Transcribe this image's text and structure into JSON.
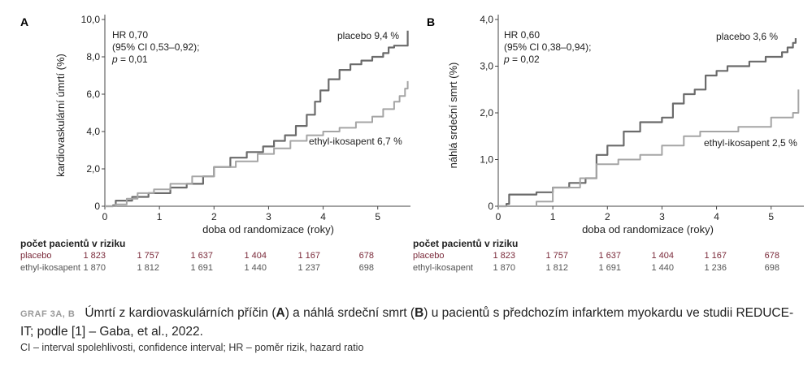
{
  "chart_data": [
    {
      "type": "line",
      "panel_label": "A",
      "xlabel": "doba od randomizace (roky)",
      "ylabel": "kardiovaskulární úmrtí (%)",
      "xlim": [
        0,
        5.6
      ],
      "ylim": [
        0,
        10
      ],
      "x_ticks": [
        0,
        1,
        2,
        3,
        4,
        5
      ],
      "y_ticks": [
        "0",
        "2,0",
        "4,0",
        "6,0",
        "8,0",
        "10,0"
      ],
      "stats": {
        "line1": "HR 0,70",
        "line2": "(95% CI 0,53–0,92);",
        "p_label": "p",
        "p_value": "= 0,01"
      },
      "series": [
        {
          "name": "placebo 9,4 %",
          "color": "#6b6b6b",
          "points": [
            [
              0,
              0
            ],
            [
              0.15,
              0.05
            ],
            [
              0.2,
              0.3
            ],
            [
              0.5,
              0.5
            ],
            [
              0.8,
              0.7
            ],
            [
              1.2,
              1.0
            ],
            [
              1.5,
              1.2
            ],
            [
              1.8,
              1.6
            ],
            [
              2.0,
              2.1
            ],
            [
              2.3,
              2.6
            ],
            [
              2.6,
              2.9
            ],
            [
              2.9,
              3.2
            ],
            [
              3.1,
              3.5
            ],
            [
              3.3,
              3.8
            ],
            [
              3.5,
              4.3
            ],
            [
              3.7,
              4.9
            ],
            [
              3.85,
              5.6
            ],
            [
              3.95,
              6.2
            ],
            [
              4.1,
              6.8
            ],
            [
              4.3,
              7.3
            ],
            [
              4.5,
              7.6
            ],
            [
              4.7,
              7.8
            ],
            [
              4.9,
              8.0
            ],
            [
              5.1,
              8.2
            ],
            [
              5.2,
              8.5
            ],
            [
              5.3,
              8.6
            ],
            [
              5.5,
              8.6
            ],
            [
              5.55,
              9.4
            ]
          ]
        },
        {
          "name": "ethyl-ikosapent 6,7 %",
          "color": "#a5a5a5",
          "points": [
            [
              0,
              0
            ],
            [
              0.2,
              0.1
            ],
            [
              0.4,
              0.4
            ],
            [
              0.6,
              0.7
            ],
            [
              0.9,
              0.9
            ],
            [
              1.2,
              1.2
            ],
            [
              1.6,
              1.6
            ],
            [
              2.0,
              2.1
            ],
            [
              2.4,
              2.4
            ],
            [
              2.8,
              2.8
            ],
            [
              3.1,
              3.1
            ],
            [
              3.4,
              3.5
            ],
            [
              3.7,
              3.8
            ],
            [
              4.0,
              4.0
            ],
            [
              4.3,
              4.2
            ],
            [
              4.6,
              4.5
            ],
            [
              4.9,
              4.8
            ],
            [
              5.1,
              5.2
            ],
            [
              5.3,
              5.6
            ],
            [
              5.4,
              5.9
            ],
            [
              5.5,
              6.3
            ],
            [
              5.55,
              6.7
            ]
          ]
        }
      ]
    },
    {
      "type": "line",
      "panel_label": "B",
      "xlabel": "doba od randomizace (roky)",
      "ylabel": "náhlá srdeční smrt (%)",
      "xlim": [
        0,
        5.6
      ],
      "ylim": [
        0,
        4
      ],
      "x_ticks": [
        0,
        1,
        2,
        3,
        4,
        5
      ],
      "y_ticks": [
        "0",
        "1,0",
        "2,0",
        "3,0",
        "4,0"
      ],
      "stats": {
        "line1": "HR 0,60",
        "line2": "(95% CI 0,38–0,94);",
        "p_label": "p",
        "p_value": "= 0,02"
      },
      "series": [
        {
          "name": "placebo 3,6 %",
          "color": "#6b6b6b",
          "points": [
            [
              0,
              0
            ],
            [
              0.15,
              0.05
            ],
            [
              0.2,
              0.25
            ],
            [
              0.7,
              0.3
            ],
            [
              1.0,
              0.4
            ],
            [
              1.3,
              0.5
            ],
            [
              1.6,
              0.6
            ],
            [
              1.8,
              1.1
            ],
            [
              2.0,
              1.3
            ],
            [
              2.3,
              1.6
            ],
            [
              2.6,
              1.8
            ],
            [
              3.0,
              1.9
            ],
            [
              3.2,
              2.2
            ],
            [
              3.4,
              2.4
            ],
            [
              3.6,
              2.5
            ],
            [
              3.8,
              2.8
            ],
            [
              4.0,
              2.9
            ],
            [
              4.2,
              3.0
            ],
            [
              4.6,
              3.1
            ],
            [
              4.9,
              3.2
            ],
            [
              5.2,
              3.3
            ],
            [
              5.3,
              3.4
            ],
            [
              5.4,
              3.5
            ],
            [
              5.45,
              3.6
            ]
          ]
        },
        {
          "name": "ethyl-ikosapent 2,5 %",
          "color": "#a5a5a5",
          "points": [
            [
              0,
              0
            ],
            [
              0.7,
              0.1
            ],
            [
              1.0,
              0.4
            ],
            [
              1.5,
              0.6
            ],
            [
              1.8,
              0.9
            ],
            [
              2.2,
              1.0
            ],
            [
              2.6,
              1.1
            ],
            [
              3.0,
              1.3
            ],
            [
              3.4,
              1.5
            ],
            [
              3.7,
              1.6
            ],
            [
              4.0,
              1.6
            ],
            [
              4.4,
              1.7
            ],
            [
              4.9,
              1.7
            ],
            [
              5.0,
              1.9
            ],
            [
              5.2,
              1.9
            ],
            [
              5.4,
              2.0
            ],
            [
              5.5,
              2.5
            ]
          ]
        }
      ]
    }
  ],
  "risk_tables": [
    {
      "header": "počet pacientů v riziku",
      "rows": [
        {
          "label": "placebo",
          "values": [
            "1 823",
            "1 757",
            "1 637",
            "1 404",
            "1 167",
            "678"
          ]
        },
        {
          "label": "ethyl-ikosapent",
          "values": [
            "1 870",
            "1 812",
            "1 691",
            "1 440",
            "1 237",
            "698"
          ]
        }
      ]
    },
    {
      "header": "počet pacientů v riziku",
      "rows": [
        {
          "label": "placebo",
          "values": [
            "1 823",
            "1 757",
            "1 637",
            "1 404",
            "1 167",
            "678"
          ]
        },
        {
          "label": "ethyl-ikosapent",
          "values": [
            "1 870",
            "1 812",
            "1 691",
            "1 440",
            "1 236",
            "698"
          ]
        }
      ]
    }
  ],
  "caption": {
    "tag": "GRAF 3A, B",
    "text_1": "Úmrtí z kardiovaskulárních příčin (",
    "bold_a": "A",
    "text_2": ") a náhlá srdeční smrt (",
    "bold_b": "B",
    "text_3": ") u pacientů s předchozím infarktem myokardu ve studii REDUCE-IT; podle [1] – Gaba, et al., 2022.",
    "footnote": "CI – interval spolehlivosti, confidence interval; HR – poměr rizik, hazard ratio"
  },
  "colors": {
    "placebo": "#6b6b6b",
    "ethyl": "#a5a5a5",
    "axis": "#444444"
  }
}
